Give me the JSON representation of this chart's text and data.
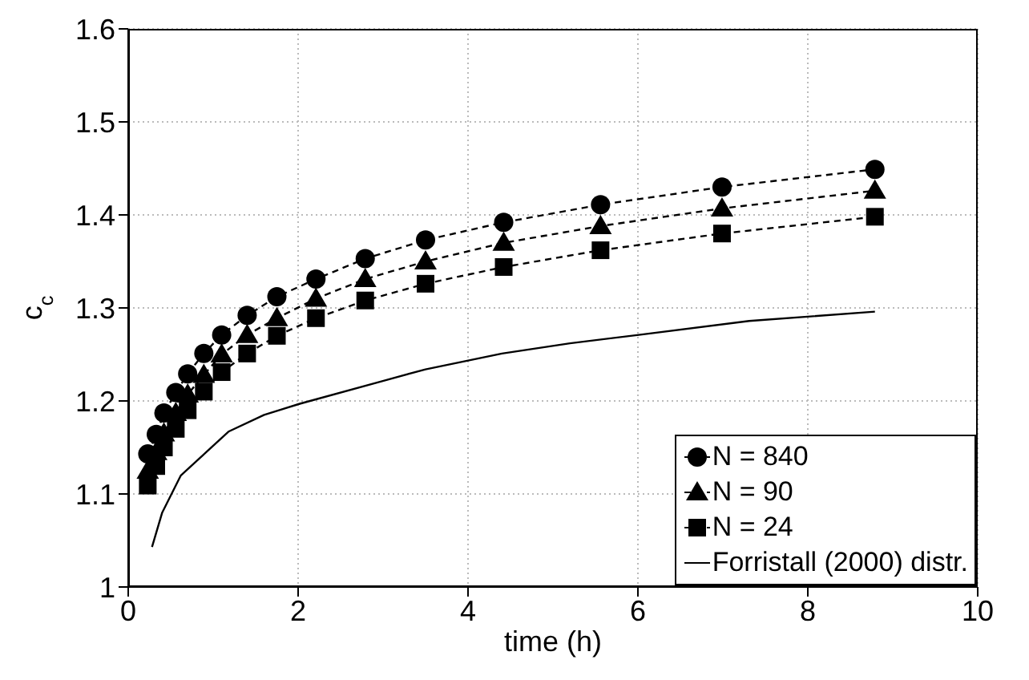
{
  "chart_data": {
    "type": "line",
    "xlabel": "time (h)",
    "ylabel": "c$_{c}$",
    "xlim": [
      0,
      10
    ],
    "xticks": [
      0,
      2,
      4,
      6,
      8,
      10
    ],
    "ylim": [
      1,
      1.6
    ],
    "yticks": [
      1,
      1.1,
      1.2,
      1.3,
      1.4,
      1.5,
      1.6
    ],
    "grid": true,
    "legend": "bottom right",
    "series": [
      {
        "name": "N = 840",
        "color": "#000000",
        "marker": "circle",
        "line_style": "dashed",
        "x": [
          0.23,
          0.33,
          0.42,
          0.56,
          0.7,
          0.89,
          1.1,
          1.4,
          1.75,
          2.21,
          2.79,
          3.5,
          4.42,
          5.56,
          6.99,
          8.79
        ],
        "values": [
          1.143,
          1.164,
          1.187,
          1.209,
          1.229,
          1.251,
          1.271,
          1.292,
          1.312,
          1.331,
          1.353,
          1.373,
          1.392,
          1.411,
          1.43,
          1.449
        ]
      },
      {
        "name": "N = 90",
        "color": "#000000",
        "marker": "triangle",
        "line_style": "dashed",
        "x": [
          0.23,
          0.33,
          0.42,
          0.56,
          0.7,
          0.89,
          1.1,
          1.4,
          1.75,
          2.21,
          2.79,
          3.5,
          4.42,
          5.56,
          6.99,
          8.79
        ],
        "values": [
          1.125,
          1.145,
          1.165,
          1.187,
          1.207,
          1.228,
          1.25,
          1.271,
          1.289,
          1.31,
          1.331,
          1.35,
          1.37,
          1.388,
          1.407,
          1.426
        ]
      },
      {
        "name": "N = 24",
        "color": "#000000",
        "marker": "square",
        "line_style": "dashed",
        "x": [
          0.23,
          0.33,
          0.42,
          0.56,
          0.7,
          0.89,
          1.1,
          1.4,
          1.75,
          2.21,
          2.79,
          3.5,
          4.42,
          5.56,
          6.99,
          8.79
        ],
        "values": [
          1.109,
          1.13,
          1.15,
          1.17,
          1.19,
          1.21,
          1.231,
          1.251,
          1.27,
          1.289,
          1.308,
          1.326,
          1.344,
          1.362,
          1.38,
          1.398
        ]
      },
      {
        "name": "Forristall (2000) distr.",
        "color": "#000000",
        "marker": "none",
        "line_style": "solid",
        "x": [
          0.28,
          0.4,
          0.62,
          0.8,
          1.18,
          1.6,
          2.02,
          2.98,
          3.5,
          4.4,
          5.2,
          6.01,
          7.31,
          8.79
        ],
        "values": [
          1.043,
          1.08,
          1.12,
          1.135,
          1.167,
          1.185,
          1.197,
          1.221,
          1.234,
          1.251,
          1.262,
          1.271,
          1.286,
          1.296
        ]
      }
    ]
  }
}
